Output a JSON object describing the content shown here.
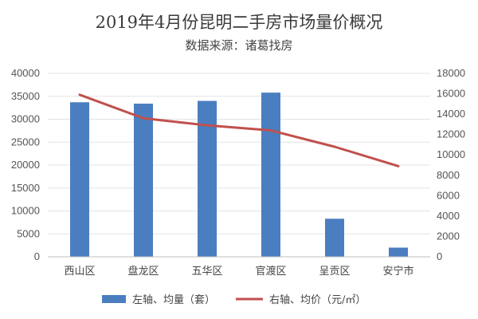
{
  "chart_data": {
    "type": "bar+line",
    "title": "2019年4月份昆明二手房市场量价概况",
    "subtitle": "数据来源：诸葛找房",
    "categories": [
      "西山区",
      "盘龙区",
      "五华区",
      "官渡区",
      "呈贡区",
      "安宁市"
    ],
    "series": [
      {
        "name": "左轴、均量（套）",
        "type": "bar",
        "axis": "left",
        "color": "#4a7ec0",
        "values": [
          33700,
          33400,
          34000,
          35800,
          8300,
          2000
        ]
      },
      {
        "name": "右轴、均价（元/㎡）",
        "type": "line",
        "axis": "right",
        "color": "#c0504d",
        "values": [
          15900,
          13600,
          12900,
          12400,
          10800,
          8900
        ]
      }
    ],
    "left_axis": {
      "ylim": [
        0,
        40000
      ],
      "ticks": [
        "0",
        "5000",
        "10000",
        "15000",
        "20000",
        "25000",
        "30000",
        "35000",
        "40000"
      ]
    },
    "right_axis": {
      "ylim": [
        0,
        18000
      ],
      "ticks": [
        "0",
        "2000",
        "4000",
        "6000",
        "8000",
        "10000",
        "12000",
        "14000",
        "16000",
        "18000"
      ]
    },
    "grid": true,
    "legend_position": "bottom"
  }
}
